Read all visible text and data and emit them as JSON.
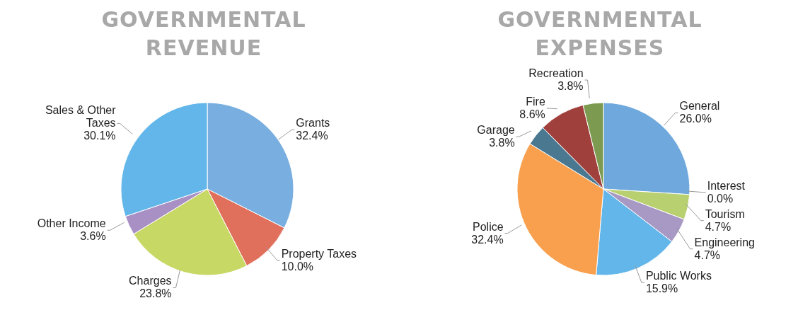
{
  "chart_data": [
    {
      "type": "pie",
      "title": "GOVERNMENTAL REVENUE",
      "categories": [
        "Grants",
        "Property Taxes",
        "Charges",
        "Other Income",
        "Sales & Other Taxes"
      ],
      "values": [
        32.4,
        10.0,
        23.8,
        3.6,
        30.1
      ],
      "colors": [
        "#78aee0",
        "#e0705c",
        "#c8d864",
        "#a890c4",
        "#62b6ea"
      ],
      "value_labels": [
        "32.4%",
        "10.0%",
        "23.8%",
        "3.6%",
        "30.1%"
      ]
    },
    {
      "type": "pie",
      "title": "GOVERNMENTAL EXPENSES",
      "categories": [
        "General",
        "Interest",
        "Tourism",
        "Engineering",
        "Public Works",
        "Police",
        "Garage",
        "Fire",
        "Recreation"
      ],
      "values": [
        26.0,
        0.0,
        4.7,
        4.7,
        15.9,
        32.4,
        3.8,
        8.6,
        3.8
      ],
      "colors": [
        "#6ea8dc",
        "#4f81bd",
        "#b8d070",
        "#a898c4",
        "#62b6ea",
        "#f8a04e",
        "#4a7890",
        "#a0403c",
        "#7c9a50"
      ],
      "value_labels": [
        "26.0%",
        "0.0%",
        "4.7%",
        "4.7%",
        "15.9%",
        "32.4%",
        "3.8%",
        "8.6%",
        "3.8%"
      ]
    }
  ]
}
